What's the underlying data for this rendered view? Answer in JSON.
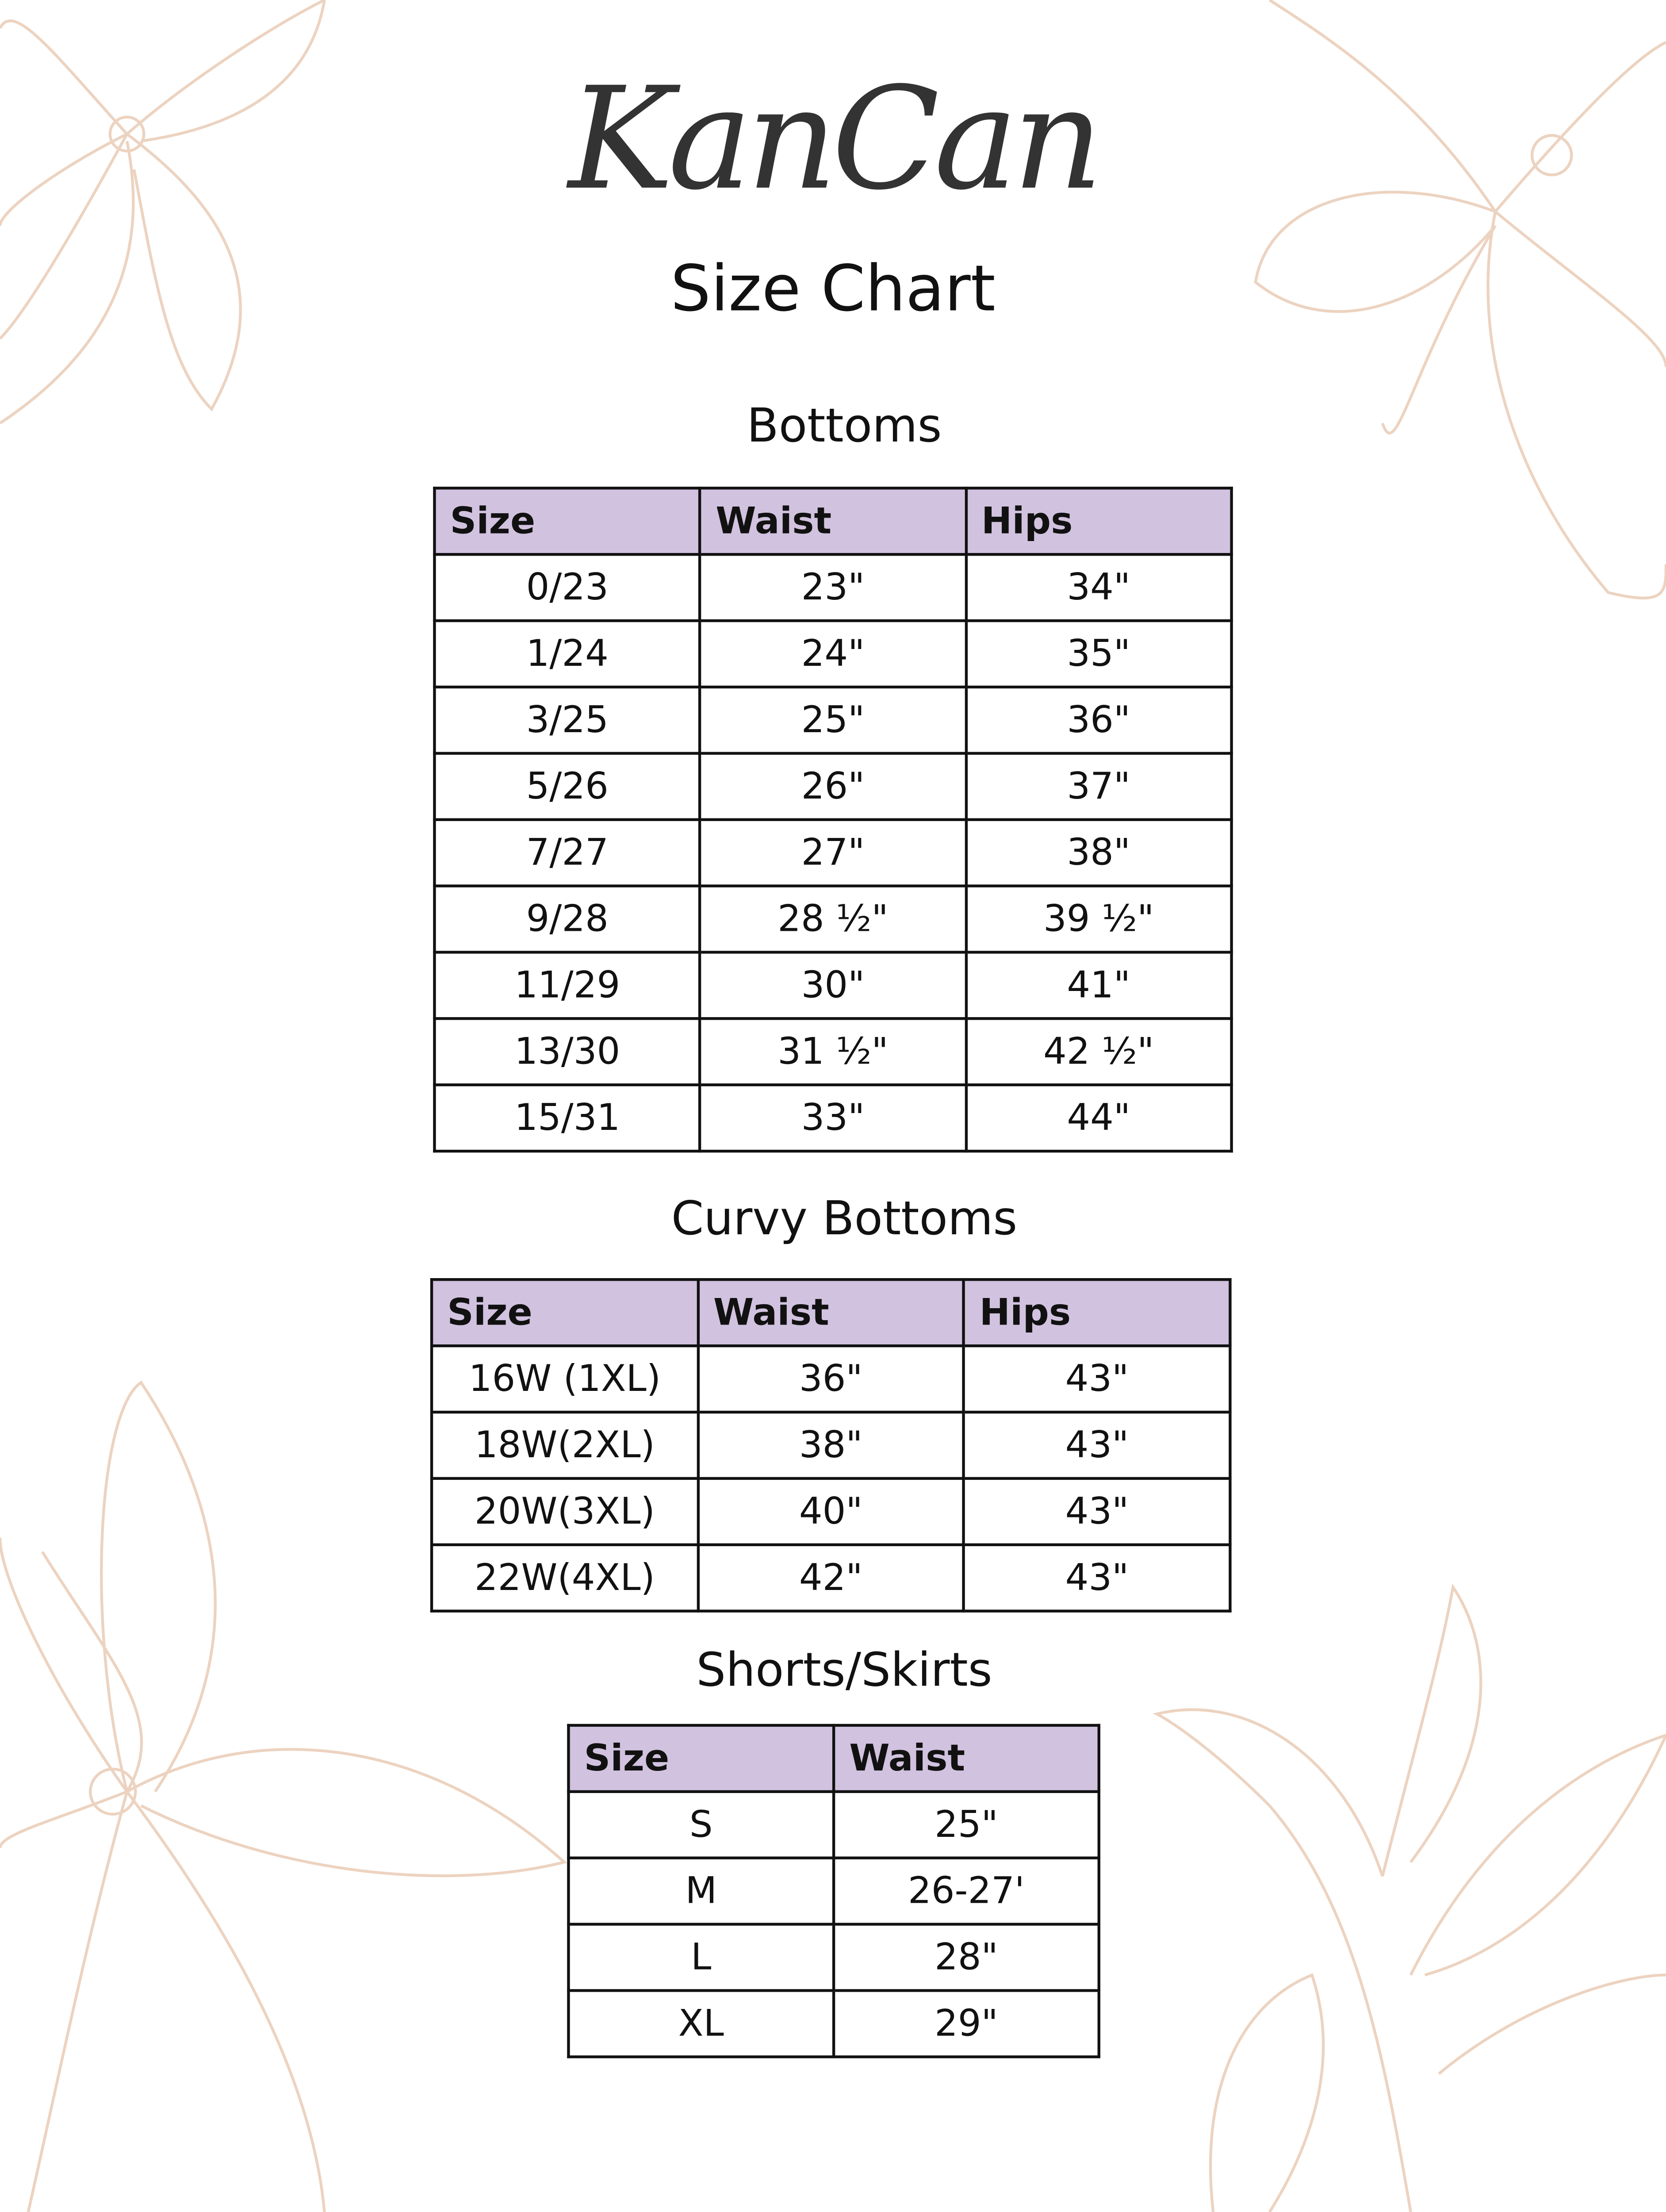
{
  "brand": {
    "logo_text": "KanCan",
    "subtitle": "Size Chart"
  },
  "colors": {
    "header_bg": "#d1c2df",
    "flower_line": "#ecd3c0",
    "border": "#111111"
  },
  "bottoms": {
    "title": "Bottoms",
    "headers": [
      "Size",
      "Waist",
      "Hips"
    ],
    "rows": [
      [
        "0/23",
        "23\"",
        "34\""
      ],
      [
        "1/24",
        "24\"",
        "35\""
      ],
      [
        "3/25",
        "25\"",
        "36\""
      ],
      [
        "5/26",
        "26\"",
        "37\""
      ],
      [
        "7/27",
        "27\"",
        "38\""
      ],
      [
        "9/28",
        "28 ½\"",
        "39 ½\""
      ],
      [
        "11/29",
        "30\"",
        "41\""
      ],
      [
        "13/30",
        "31 ½\"",
        "42 ½\""
      ],
      [
        "15/31",
        "33\"",
        "44\""
      ]
    ]
  },
  "curvy": {
    "title": "Curvy Bottoms",
    "headers": [
      "Size",
      "Waist",
      "Hips"
    ],
    "rows": [
      [
        "16W (1XL)",
        "36\"",
        "43\""
      ],
      [
        "18W(2XL)",
        "38\"",
        "43\""
      ],
      [
        "20W(3XL)",
        "40\"",
        "43\""
      ],
      [
        "22W(4XL)",
        "42\"",
        "43\""
      ]
    ]
  },
  "shorts": {
    "title": "Shorts/Skirts",
    "headers": [
      "Size",
      "Waist"
    ],
    "rows": [
      [
        "S",
        "25\""
      ],
      [
        "M",
        "26-27'"
      ],
      [
        "L",
        "28\""
      ],
      [
        "XL",
        "29\""
      ]
    ]
  }
}
